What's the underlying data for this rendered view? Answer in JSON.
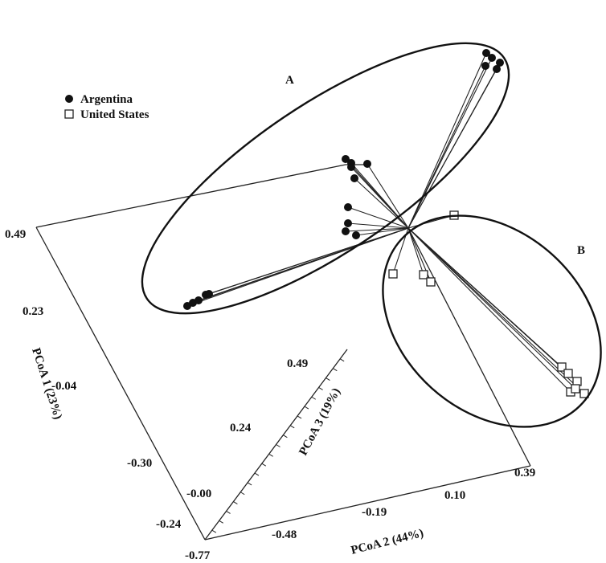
{
  "legend": [
    "Argentina",
    "United States"
  ],
  "group_labels": [
    "A",
    "B"
  ],
  "axes": {
    "pcoa1": {
      "title": "PCoA 1 (23%)",
      "tick_labels": [
        "0.49",
        "0.23",
        "-0.04",
        "-0.30",
        "-0.24"
      ]
    },
    "pcoa2": {
      "title": "PCoA 2 (44%)",
      "tick_labels": [
        "-0.77",
        "-0.48",
        "-0.19",
        "0.10",
        "0.39"
      ]
    },
    "pcoa3": {
      "title": "PCoA 3 (19%)",
      "tick_labels": [
        "0.49",
        "0.24",
        "-0.00"
      ]
    }
  }
}
